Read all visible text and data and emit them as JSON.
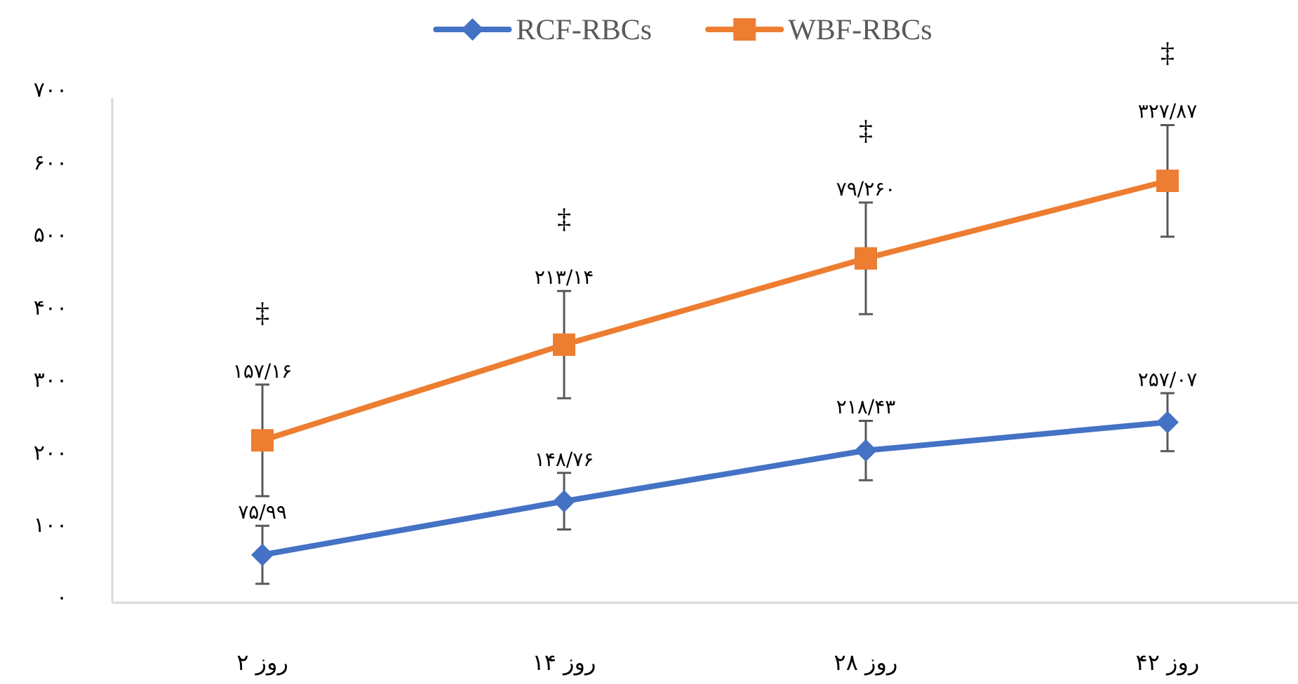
{
  "chart_data": {
    "type": "line",
    "categories": [
      "روز ۲",
      "روز ۱۴",
      "روز ۲۸",
      "روز ۴۲"
    ],
    "series": [
      {
        "name": "RCF-RBCs",
        "color": "#4472c4",
        "marker": "diamond",
        "values": [
          66,
          140,
          210,
          249
        ],
        "errors": [
          40,
          39,
          41,
          40
        ],
        "value_labels": [
          "۷۵/۹۹",
          "۱۴۸/۷۶",
          "۲۱۸/۴۳",
          "۲۵۷/۰۷"
        ]
      },
      {
        "name": "WBF-RBCs",
        "color": "#ed7d31",
        "marker": "square",
        "values": [
          224,
          356,
          475,
          582
        ],
        "errors": [
          77,
          74,
          77,
          77
        ],
        "value_labels": [
          "۱۵۷/۱۶",
          "۲۱۳/۱۴",
          "۷۹/۲۶۰",
          "۳۲۷/۸۷"
        ]
      }
    ],
    "annotations": [
      "‡",
      "‡",
      "‡",
      "‡"
    ],
    "ylim": [
      0,
      700
    ],
    "yticks": [
      {
        "value": 0,
        "label": "۰"
      },
      {
        "value": 100,
        "label": "۱۰۰"
      },
      {
        "value": 200,
        "label": "۲۰۰"
      },
      {
        "value": 300,
        "label": "۳۰۰"
      },
      {
        "value": 400,
        "label": "۴۰۰"
      },
      {
        "value": 500,
        "label": "۵۰۰"
      },
      {
        "value": 600,
        "label": "۶۰۰"
      },
      {
        "value": 700,
        "label": "۷۰۰"
      }
    ],
    "grid": false,
    "legend": "top",
    "line_style": "solid"
  }
}
